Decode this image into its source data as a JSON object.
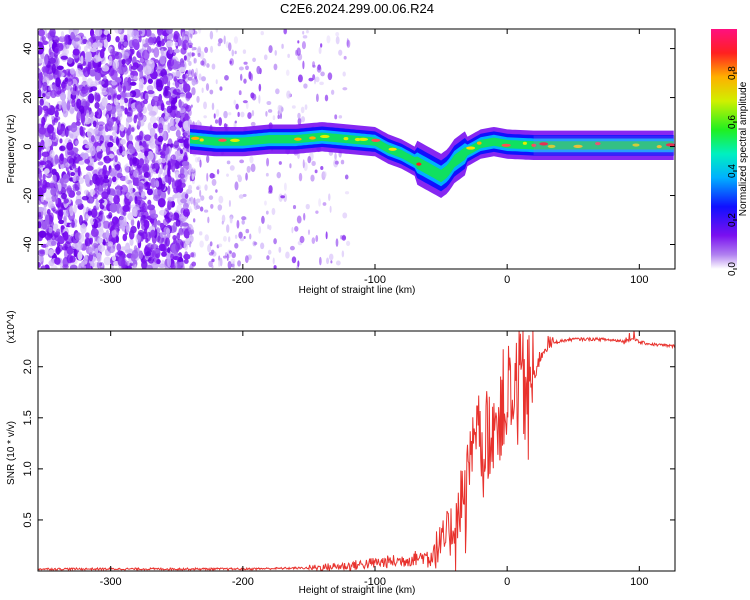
{
  "title": "C2E6.2024.299.00.06.R24",
  "chart_data": [
    {
      "type": "heatmap",
      "xlabel": "Height of straight line (km)",
      "ylabel": "Frequency (Hz)",
      "xlim": [
        -355,
        127
      ],
      "ylim": [
        -50,
        48
      ],
      "xticks": [
        -300,
        -200,
        -100,
        0,
        100
      ],
      "yticks": [
        40,
        20,
        0,
        -20,
        -40
      ],
      "colorbar": {
        "label": "Normalized spectral amplitude",
        "range": [
          0,
          0.98
        ],
        "ticks": [
          0.0,
          0.2,
          0.4,
          0.6,
          0.8
        ],
        "colormap": "rainbow (purple-blue-cyan-green-yellow-red-magenta)"
      },
      "trace": {
        "x": [
          -240,
          -220,
          -200,
          -180,
          -160,
          -140,
          -120,
          -100,
          -90,
          -80,
          -70,
          -60,
          -50,
          -45,
          -40,
          -30,
          -20,
          -10,
          0,
          20,
          40,
          60,
          80,
          100,
          127
        ],
        "y": [
          3,
          2,
          2,
          3,
          3,
          4,
          3,
          2,
          -1,
          -3,
          -6,
          -9,
          -12,
          -10,
          -6,
          -2,
          1,
          2,
          1,
          0.5,
          0.5,
          0.5,
          0.5,
          0.5,
          0.5
        ]
      },
      "noise_region": [
        -355,
        -240
      ],
      "grid": false
    },
    {
      "type": "line",
      "xlabel": "Height of straight line (km)",
      "ylabel": "SNR (10 * v/v)",
      "scale_label": "(x10^4)",
      "xlim": [
        -355,
        127
      ],
      "ylim": [
        0,
        2.35
      ],
      "xticks": [
        -300,
        -200,
        -100,
        0,
        100
      ],
      "yticks": [
        0.5,
        1.0,
        1.5,
        2.0
      ],
      "color": "#e8322d",
      "series": [
        {
          "x": [
            -355,
            -300,
            -250,
            -200,
            -150,
            -120,
            -100,
            -80,
            -60,
            -50,
            -40,
            -35,
            -30,
            -25,
            -20,
            -15,
            -10,
            -5,
            0,
            5,
            10,
            15,
            20,
            25,
            30,
            40,
            50,
            60,
            70,
            80,
            90,
            95,
            100,
            110,
            127
          ],
          "y": [
            0.02,
            0.02,
            0.02,
            0.02,
            0.03,
            0.05,
            0.08,
            0.1,
            0.15,
            0.25,
            0.45,
            0.7,
            0.95,
            1.2,
            1.4,
            1.3,
            1.5,
            1.6,
            1.7,
            1.75,
            1.8,
            1.85,
            1.9,
            2.1,
            2.22,
            2.25,
            2.27,
            2.27,
            2.27,
            2.26,
            2.25,
            2.28,
            2.24,
            2.22,
            2.2
          ]
        }
      ],
      "grid": false
    }
  ]
}
